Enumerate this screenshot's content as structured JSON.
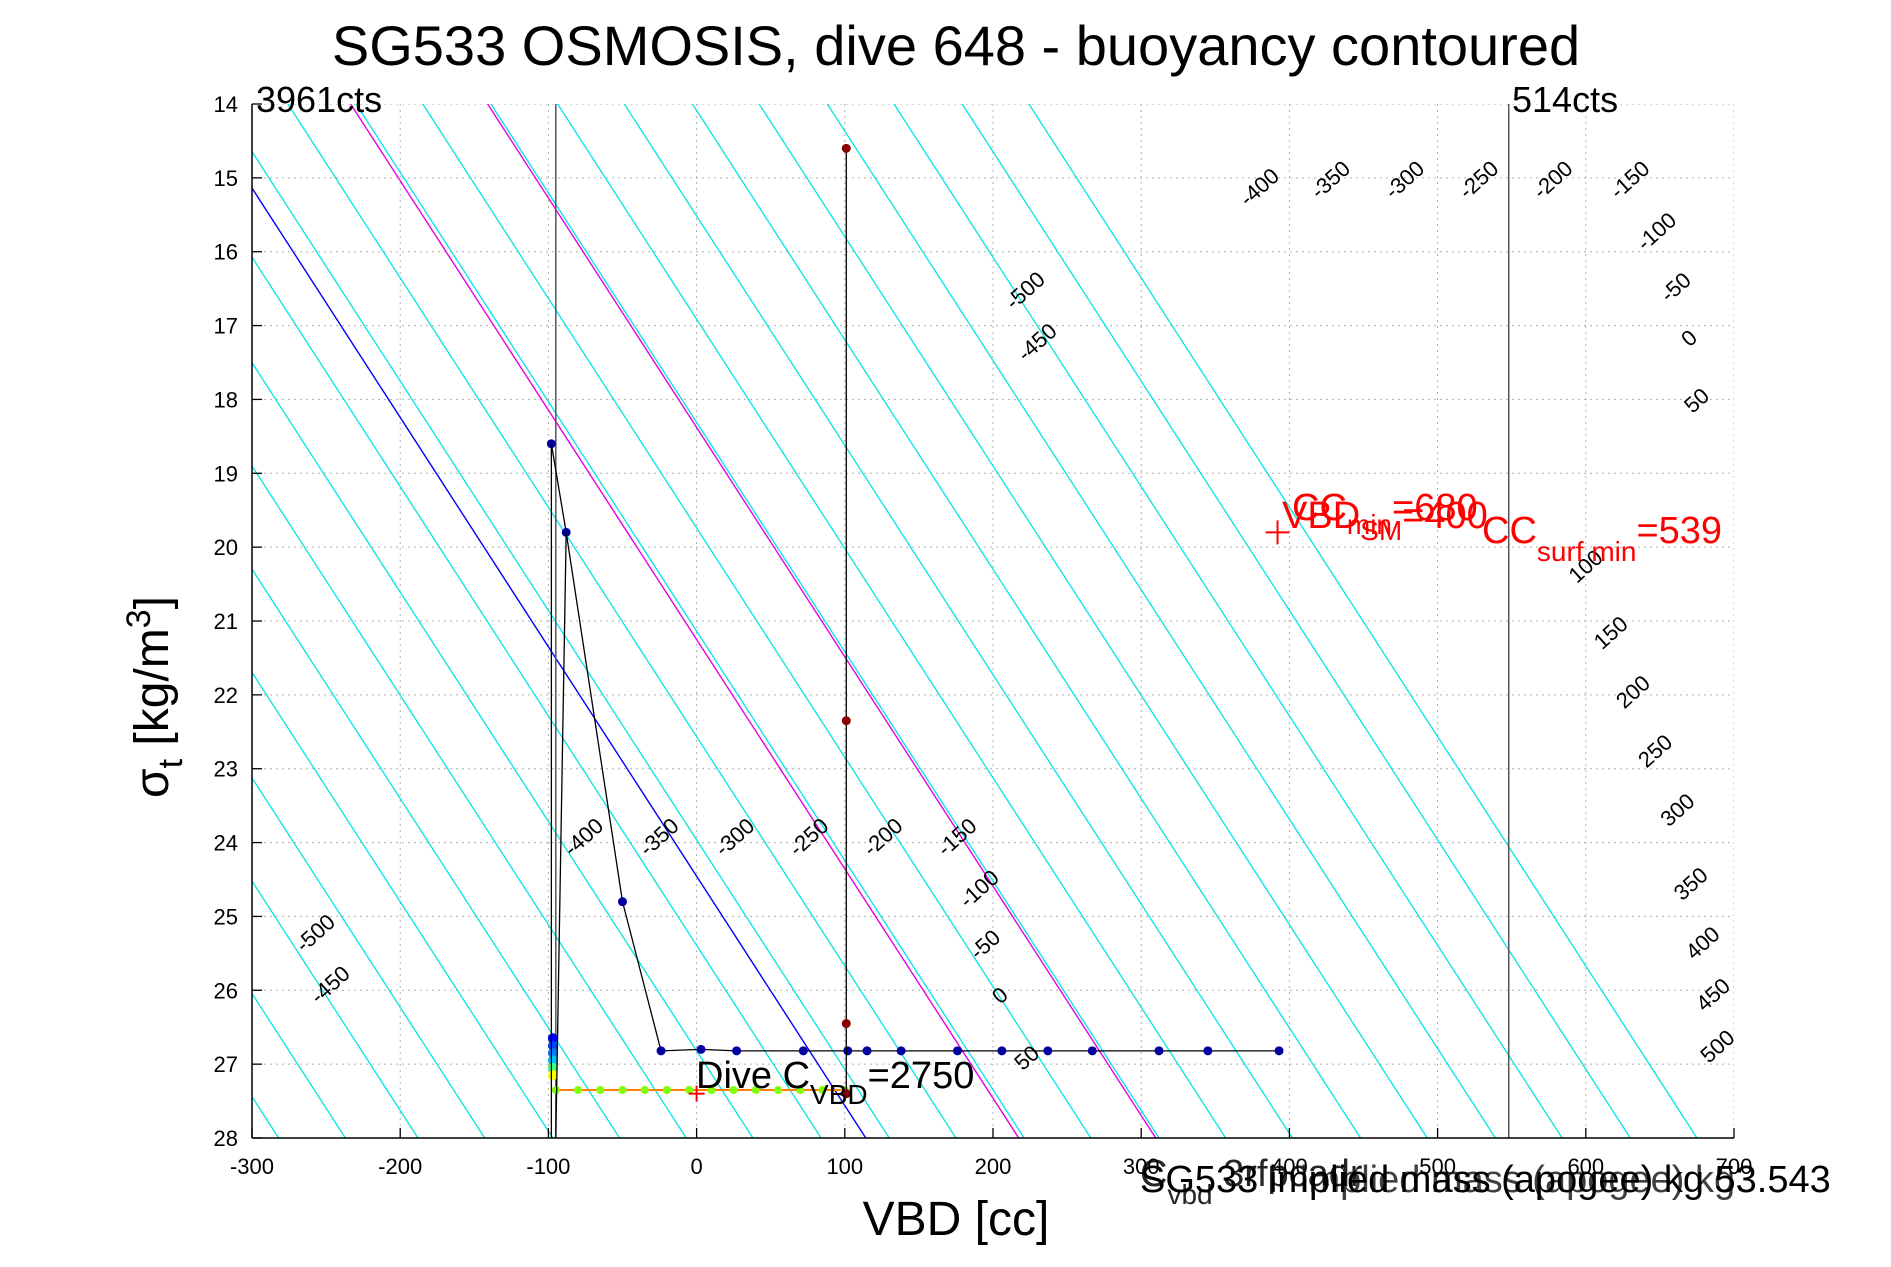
{
  "chart_data": {
    "type": "line",
    "title": "SG533 OSMOSIS, dive 648 - buoyancy contoured",
    "xlabel": "VBD [cc]",
    "ylabel": {
      "main": "σ",
      "sub": "t",
      "unit": " [kg/m",
      "sup": "3",
      "close": "]"
    },
    "xlim": [
      -300,
      700
    ],
    "ylim": [
      28,
      14
    ],
    "x_ticks": [
      -300,
      -200,
      -100,
      0,
      100,
      200,
      300,
      400,
      500,
      600,
      700
    ],
    "x_tick_labels": [
      "-300",
      "-200",
      "-100",
      "0",
      "100",
      "200",
      "300",
      "400",
      "500",
      "600",
      "700"
    ],
    "y_ticks": [
      14,
      15,
      16,
      17,
      18,
      19,
      20,
      21,
      22,
      23,
      24,
      25,
      26,
      27,
      28
    ],
    "y_tick_labels": [
      "14",
      "15",
      "16",
      "17",
      "18",
      "19",
      "20",
      "21",
      "22",
      "23",
      "24",
      "25",
      "26",
      "27",
      "28"
    ],
    "grid": true,
    "colors": {
      "cyan": "#00e5e5",
      "zero": "#0000ff",
      "positive": "#e600e6",
      "dive": "#000000",
      "label": "#ff0000",
      "marker": "#0000a0",
      "marker_top": "#8b0000"
    },
    "contours": {
      "levels": [
        -500,
        -450,
        -400,
        -350,
        -300,
        -250,
        -200,
        -150,
        -100,
        -50,
        0,
        50,
        100,
        150,
        200,
        250,
        300,
        350,
        400,
        450,
        500
      ],
      "label_list": [
        "-500",
        "-450",
        "-400",
        "-350",
        "-300",
        "-250",
        "-200",
        "-150",
        "-100",
        "-50",
        "0",
        "50",
        "100",
        "150",
        "200",
        "250",
        "300",
        "350",
        "400",
        "450",
        "500"
      ],
      "zero_at_sigma28_vbd": 112,
      "slope_vbd_per_sigma": -32.2,
      "level_spacing_vbd": 43,
      "cyan_line_x_at_sigma28": [
        -314,
        -282,
        -237,
        -188,
        -143,
        -97,
        -52,
        -7,
        38,
        84,
        130,
        175,
        221,
        266,
        312,
        357,
        402,
        448,
        493,
        539,
        584,
        630,
        675
      ],
      "upper_labels": [
        {
          "text": "-500",
          "vbd": 214,
          "sigma": 16.8
        },
        {
          "text": "-450",
          "vbd": 222,
          "sigma": 17.5
        },
        {
          "text": "-400",
          "vbd": 372,
          "sigma": 15.4
        },
        {
          "text": "-350",
          "vbd": 420,
          "sigma": 15.3
        },
        {
          "text": "-300",
          "vbd": 470,
          "sigma": 15.3
        },
        {
          "text": "-250",
          "vbd": 520,
          "sigma": 15.3
        },
        {
          "text": "-200",
          "vbd": 570,
          "sigma": 15.3
        },
        {
          "text": "-150",
          "vbd": 622,
          "sigma": 15.3
        },
        {
          "text": "-100",
          "vbd": 640,
          "sigma": 16.0
        },
        {
          "text": "-50",
          "vbd": 656,
          "sigma": 16.7
        },
        {
          "text": "0",
          "vbd": 670,
          "sigma": 17.3
        },
        {
          "text": "50",
          "vbd": 672,
          "sigma": 18.2
        },
        {
          "text": "100",
          "vbd": 594,
          "sigma": 20.5
        },
        {
          "text": "150",
          "vbd": 611,
          "sigma": 21.4
        },
        {
          "text": "200",
          "vbd": 626,
          "sigma": 22.2
        },
        {
          "text": "250",
          "vbd": 641,
          "sigma": 23.0
        },
        {
          "text": "300",
          "vbd": 656,
          "sigma": 23.8
        },
        {
          "text": "350",
          "vbd": 665,
          "sigma": 24.8
        },
        {
          "text": "400",
          "vbd": 673,
          "sigma": 25.6
        },
        {
          "text": "450",
          "vbd": 680,
          "sigma": 26.3
        },
        {
          "text": "500",
          "vbd": 683,
          "sigma": 27.0
        }
      ],
      "lower_labels": [
        {
          "text": "-500",
          "vbd": -265,
          "sigma": 25.5
        },
        {
          "text": "-450",
          "vbd": -255,
          "sigma": 26.2
        },
        {
          "text": "-400",
          "vbd": -84,
          "sigma": 24.2
        },
        {
          "text": "-350",
          "vbd": -33,
          "sigma": 24.2
        },
        {
          "text": "-300",
          "vbd": 18,
          "sigma": 24.2
        },
        {
          "text": "-250",
          "vbd": 68,
          "sigma": 24.2
        },
        {
          "text": "-200",
          "vbd": 118,
          "sigma": 24.2
        },
        {
          "text": "-150",
          "vbd": 168,
          "sigma": 24.2
        },
        {
          "text": "-100",
          "vbd": 183,
          "sigma": 24.9
        },
        {
          "text": "-50",
          "vbd": 190,
          "sigma": 25.6
        },
        {
          "text": "0",
          "vbd": 205,
          "sigma": 26.2
        },
        {
          "text": "50",
          "vbd": 220,
          "sigma": 27.1
        }
      ]
    },
    "vertical_lines": [
      {
        "vbd": -95,
        "label": "3961cts"
      },
      {
        "vbd": 548,
        "label": "514cts"
      }
    ],
    "series": [
      {
        "x": [
          -98,
          -88,
          -50,
          -24,
          3,
          27,
          72,
          102,
          115,
          138,
          176,
          206,
          237,
          267,
          312,
          345,
          393
        ],
        "y": [
          18.6,
          19.8,
          24.8,
          26.82,
          26.8,
          26.82,
          26.82,
          26.82,
          26.82,
          26.82,
          26.82,
          26.82,
          26.82,
          26.82,
          26.82,
          26.82,
          26.82
        ]
      },
      {
        "x": [
          101,
          101,
          101,
          101
        ],
        "y": [
          14.6,
          22.35,
          26.45,
          27.4
        ]
      }
    ],
    "descent_series": {
      "x": [
        -97,
        -97,
        -97,
        -97,
        -97,
        -97
      ],
      "y": [
        26.65,
        26.75,
        26.85,
        26.95,
        27.05,
        27.15
      ]
    },
    "dive_c_series": {
      "x": [
        -95,
        -80,
        -65,
        -50,
        -35,
        -20,
        -5,
        10,
        25,
        40,
        55,
        70,
        85,
        100
      ],
      "y": [
        27.35,
        27.35,
        27.35,
        27.35,
        27.35,
        27.35,
        27.35,
        27.35,
        27.35,
        27.35,
        27.35,
        27.35,
        27.35,
        27.35
      ]
    },
    "annotations": {
      "dive_c": {
        "main": "Dive C",
        "sub": "VBD",
        "value": "=2750"
      },
      "vbd_sm": {
        "main": "VBD",
        "sub": "SM",
        "value": "=400",
        "vbd": 392,
        "sigma": 19.8
      },
      "cc": {
        "main": "CC",
        "sub": "min",
        "value": "=680"
      },
      "cc_surf": {
        "main": "CC",
        "sub": "surf min",
        "value": "=539"
      },
      "bottom_left": {
        "main": "C",
        "sub": "vbd",
        "value": " 3rfpcadr"
      },
      "mass": "SG533 implied mass (apogee) kg 53.543",
      "mass_overlay": "implied mass (apogee) kg"
    }
  }
}
